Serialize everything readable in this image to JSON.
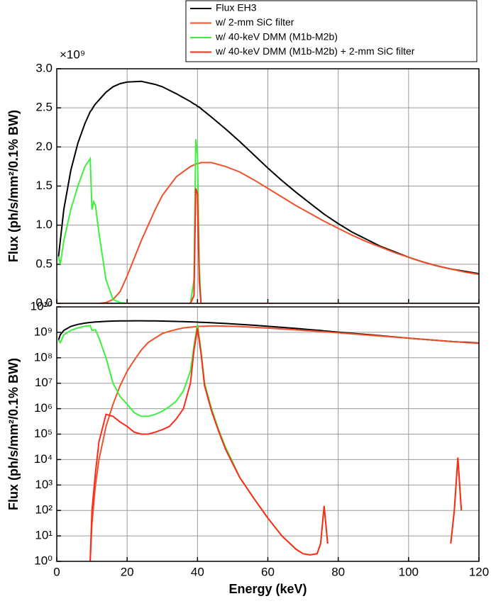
{
  "chart_data": [
    {
      "type": "line",
      "y_multiplier": "×10⁹",
      "ylabel": "Flux (ph/s/mm²/0.1% BW)",
      "x": [
        0.5,
        1,
        2,
        4,
        6,
        8,
        9.5,
        10,
        10.5,
        11,
        12,
        14,
        16,
        18,
        20,
        24,
        28,
        30,
        34,
        38,
        39,
        39.5,
        40,
        40.5,
        41,
        44,
        48,
        52,
        56,
        60,
        64,
        68,
        72,
        76,
        80,
        84,
        88,
        92,
        96,
        100,
        104,
        108,
        112,
        116,
        120
      ],
      "xlim": [
        0,
        120
      ],
      "xticks": [
        0,
        20,
        40,
        60,
        80,
        100,
        120
      ],
      "ylim": [
        0,
        3
      ],
      "yticks": [
        {
          "value": 0,
          "label": "0.0"
        },
        0.5,
        {
          "value": 1,
          "label": "1.0"
        },
        1.5,
        {
          "value": 2,
          "label": "2.0"
        },
        2.5,
        {
          "value": 3,
          "label": "3.0"
        }
      ],
      "grid": true,
      "legend": "top-right",
      "series": [
        {
          "name": "Flux EH3",
          "color": "#000000",
          "values": [
            0.6,
            0.8,
            1.2,
            1.7,
            2.05,
            2.3,
            2.45,
            2.48,
            2.52,
            2.55,
            2.6,
            2.7,
            2.77,
            2.81,
            2.83,
            2.84,
            2.8,
            2.77,
            2.68,
            2.58,
            2.55,
            2.54,
            2.52,
            2.51,
            2.49,
            2.38,
            2.23,
            2.07,
            1.9,
            1.73,
            1.57,
            1.42,
            1.28,
            1.14,
            1.02,
            0.91,
            0.82,
            0.73,
            0.66,
            0.59,
            0.53,
            0.48,
            0.44,
            0.41,
            0.38
          ]
        },
        {
          "name": "w/ 2-mm SiC filter",
          "color": "#f0502a",
          "values": [
            0,
            0,
            0,
            0,
            0,
            0,
            0,
            0,
            0,
            0,
            0,
            0.01,
            0.05,
            0.15,
            0.35,
            0.8,
            1.2,
            1.38,
            1.62,
            1.75,
            1.77,
            1.78,
            1.79,
            1.79,
            1.8,
            1.8,
            1.75,
            1.68,
            1.58,
            1.47,
            1.36,
            1.25,
            1.15,
            1.05,
            0.96,
            0.87,
            0.79,
            0.72,
            0.65,
            0.59,
            0.53,
            0.48,
            0.44,
            0.4,
            0.37
          ]
        },
        {
          "name": "w/ 40-keV DMM (M1b-M2b)",
          "color": "#3ef03e",
          "values": [
            0.6,
            0.5,
            0.8,
            1.2,
            1.5,
            1.75,
            1.85,
            1.2,
            1.3,
            1.25,
            0.9,
            0.3,
            0.05,
            0.01,
            0,
            0,
            0,
            0,
            0,
            0,
            0.3,
            2.1,
            1.9,
            0.5,
            0,
            0,
            0,
            0,
            0,
            0,
            0,
            0,
            0,
            0,
            0,
            0,
            0,
            0,
            0,
            0,
            0,
            0,
            0,
            0,
            0
          ]
        },
        {
          "name": "w/ 40-keV DMM (M1b-M2b) + 2-mm SiC filter",
          "color": "#ff2a1a",
          "values": [
            0,
            0,
            0,
            0,
            0,
            0,
            0,
            0,
            0,
            0,
            0,
            0,
            0,
            0,
            0,
            0,
            0,
            0,
            0,
            0,
            0.1,
            1.47,
            1.4,
            0.3,
            0,
            0,
            0,
            0,
            0,
            0,
            0,
            0,
            0,
            0,
            0,
            0,
            0,
            0,
            0,
            0,
            0,
            0,
            0,
            0,
            0
          ]
        }
      ]
    },
    {
      "type": "line",
      "log_y": true,
      "ylabel": "Flux (ph/s/mm²/0.1% BW)",
      "xlabel": "Energy (keV)",
      "x": [
        0.5,
        1,
        2,
        4,
        6,
        8,
        9,
        9.5,
        10,
        11,
        12,
        14,
        16,
        18,
        20,
        22,
        24,
        26,
        28,
        30,
        32,
        34,
        36,
        38,
        39,
        40,
        41,
        42,
        44,
        46,
        48,
        50,
        52,
        56,
        60,
        64,
        68,
        70,
        72,
        74,
        75,
        76,
        77,
        78,
        80,
        90,
        100,
        110,
        112,
        113,
        114,
        115,
        116,
        120
      ],
      "xlim": [
        0,
        120
      ],
      "xticks": [
        0,
        20,
        40,
        60,
        80,
        100,
        120
      ],
      "ylim": [
        1,
        10000000000
      ],
      "yticks": [
        {
          "value": 1,
          "label": "10⁰"
        },
        {
          "value": 10,
          "label": "10¹"
        },
        {
          "value": 100,
          "label": "10²"
        },
        {
          "value": 1000,
          "label": "10³"
        },
        {
          "value": 10000,
          "label": "10⁴"
        },
        {
          "value": 100000,
          "label": "10⁵"
        },
        {
          "value": 1000000,
          "label": "10⁶"
        },
        {
          "value": 10000000,
          "label": "10⁷"
        },
        {
          "value": 100000000,
          "label": "10⁸"
        },
        {
          "value": 1000000000,
          "label": "10⁹"
        },
        {
          "value": 10000000000,
          "label": "10¹⁰"
        }
      ],
      "grid": true,
      "series": [
        {
          "color": "#000000",
          "values": [
            500000000.0,
            800000000.0,
            1200000000.0,
            1700000000.0,
            2050000000.0,
            2300000000.0,
            2400000000.0,
            2450000000.0,
            2480000000.0,
            2550000000.0,
            2600000000.0,
            2700000000.0,
            2770000000.0,
            2810000000.0,
            2830000000.0,
            2840000000.0,
            2840000000.0,
            2820000000.0,
            2800000000.0,
            2770000000.0,
            2720000000.0,
            2680000000.0,
            2630000000.0,
            2580000000.0,
            2550000000.0,
            2520000000.0,
            2490000000.0,
            2450000000.0,
            2380000000.0,
            2300000000.0,
            2230000000.0,
            2150000000.0,
            2070000000.0,
            1900000000.0,
            1730000000.0,
            1570000000.0,
            1420000000.0,
            1350000000.0,
            1280000000.0,
            1210000000.0,
            1180000000.0,
            1140000000.0,
            1110000000.0,
            1080000000.0,
            1020000000.0,
            780000000.0,
            590000000.0,
            460000000.0,
            440000000.0,
            430000000.0,
            420000000.0,
            410000000.0,
            410000000.0,
            380000000.0
          ]
        },
        {
          "color": "#f0502a",
          "values": [
            null,
            null,
            null,
            null,
            null,
            null,
            null,
            1,
            30,
            1000,
            10000,
            200000,
            1500000,
            8000000,
            30000000,
            80000000,
            200000000,
            400000000,
            600000000,
            900000000,
            1100000000.0,
            1300000000.0,
            1500000000.0,
            1600000000.0,
            1650000000.0,
            1700000000.0,
            1720000000.0,
            1750000000.0,
            1780000000.0,
            1780000000.0,
            1750000000.0,
            1720000000.0,
            1680000000.0,
            1580000000.0,
            1470000000.0,
            1360000000.0,
            1250000000.0,
            1200000000.0,
            1150000000.0,
            1100000000.0,
            1080000000.0,
            1050000000.0,
            1030000000.0,
            1000000000.0,
            960000000.0,
            750000000.0,
            590000000.0,
            460000000.0,
            440000000.0,
            430000000.0,
            420000000.0,
            410000000.0,
            400000000.0,
            370000000.0
          ]
        },
        {
          "color": "#3ef03e",
          "values": [
            500000000.0,
            400000000.0,
            800000000.0,
            1200000000.0,
            1500000000.0,
            1750000000.0,
            1800000000.0,
            1850000000.0,
            1200000000.0,
            1250000000.0,
            600000000.0,
            100000000.0,
            10000000.0,
            3000000.0,
            1500000.0,
            700000.0,
            500000.0,
            500000.0,
            600000.0,
            800000.0,
            1200000.0,
            2000000.0,
            5000000.0,
            30000000.0,
            300000000.0,
            2000000000.0,
            200000000.0,
            10000000.0,
            1000000.0,
            150000.0,
            30000.0,
            8000.0,
            2000.0,
            300,
            50,
            10,
            3,
            2,
            1.8,
            2,
            5,
            150,
            5,
            null,
            null,
            null,
            null,
            null,
            5,
            100,
            12000,
            100,
            null,
            null
          ]
        },
        {
          "color": "#ff2a1a",
          "values": [
            null,
            null,
            null,
            null,
            null,
            null,
            null,
            1,
            100,
            3000,
            50000,
            600000,
            500000,
            300000,
            200000,
            120000,
            100000,
            100000,
            120000,
            150000,
            200000,
            400000,
            1000000,
            10000000,
            200000000,
            1500000000.0,
            150000000.0,
            8000000.0,
            800000.0,
            130000.0,
            25000.0,
            7000.0,
            2000.0,
            300,
            50,
            10,
            3,
            2,
            1.8,
            2,
            5,
            150,
            5,
            null,
            null,
            null,
            null,
            null,
            5,
            100,
            12000,
            100,
            null,
            null
          ]
        }
      ]
    }
  ]
}
